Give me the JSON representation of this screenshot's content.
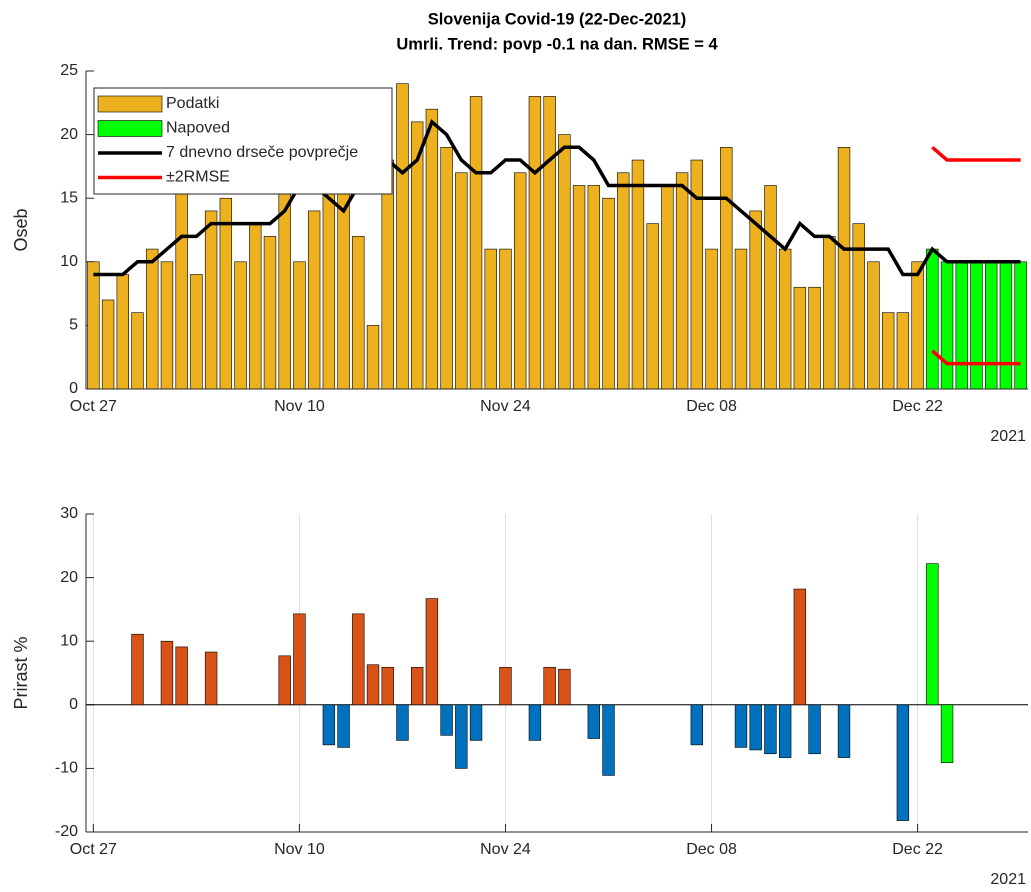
{
  "chart_data": [
    {
      "type": "bar",
      "title": "Slovenija Covid-19 (22-Dec-2021)",
      "subtitle": "Umrli. Trend: povp -0.1 na dan. RMSE = 4",
      "ylabel": "Oseb",
      "year_label": "2021",
      "x": [
        "2021-10-27",
        "2021-10-28",
        "2021-10-29",
        "2021-10-30",
        "2021-10-31",
        "2021-11-01",
        "2021-11-02",
        "2021-11-03",
        "2021-11-04",
        "2021-11-05",
        "2021-11-06",
        "2021-11-07",
        "2021-11-08",
        "2021-11-09",
        "2021-11-10",
        "2021-11-11",
        "2021-11-12",
        "2021-11-13",
        "2021-11-14",
        "2021-11-15",
        "2021-11-16",
        "2021-11-17",
        "2021-11-18",
        "2021-11-19",
        "2021-11-20",
        "2021-11-21",
        "2021-11-22",
        "2021-11-23",
        "2021-11-24",
        "2021-11-25",
        "2021-11-26",
        "2021-11-27",
        "2021-11-28",
        "2021-11-29",
        "2021-11-30",
        "2021-12-01",
        "2021-12-02",
        "2021-12-03",
        "2021-12-04",
        "2021-12-05",
        "2021-12-06",
        "2021-12-07",
        "2021-12-08",
        "2021-12-09",
        "2021-12-10",
        "2021-12-11",
        "2021-12-12",
        "2021-12-13",
        "2021-12-14",
        "2021-12-15",
        "2021-12-16",
        "2021-12-17",
        "2021-12-18",
        "2021-12-19",
        "2021-12-20",
        "2021-12-21",
        "2021-12-22",
        "2021-12-23",
        "2021-12-24",
        "2021-12-25",
        "2021-12-26",
        "2021-12-27",
        "2021-12-28",
        "2021-12-29"
      ],
      "series": [
        {
          "name": "Podatki",
          "type": "bar",
          "color": "#edb120",
          "values": [
            10,
            7,
            9,
            6,
            11,
            10,
            16,
            9,
            14,
            15,
            10,
            13,
            12,
            16,
            10,
            14,
            17,
            16,
            12,
            5,
            18,
            24,
            21,
            22,
            19,
            17,
            23,
            11,
            11,
            17,
            23,
            23,
            20,
            16,
            16,
            15,
            17,
            18,
            13,
            16,
            17,
            18,
            11,
            19,
            11,
            14,
            16,
            11,
            8,
            8,
            12,
            19,
            13,
            10,
            6,
            6,
            10,
            null,
            null,
            null,
            null,
            null,
            null,
            null
          ]
        },
        {
          "name": "Napoved",
          "type": "bar",
          "color": "#00ff00",
          "values": [
            null,
            null,
            null,
            null,
            null,
            null,
            null,
            null,
            null,
            null,
            null,
            null,
            null,
            null,
            null,
            null,
            null,
            null,
            null,
            null,
            null,
            null,
            null,
            null,
            null,
            null,
            null,
            null,
            null,
            null,
            null,
            null,
            null,
            null,
            null,
            null,
            null,
            null,
            null,
            null,
            null,
            null,
            null,
            null,
            null,
            null,
            null,
            null,
            null,
            null,
            null,
            null,
            null,
            null,
            null,
            null,
            null,
            11,
            10,
            10,
            10,
            10,
            10,
            10
          ]
        },
        {
          "name": "7 dnevno drseče povprečje",
          "type": "line",
          "color": "#000000",
          "values": [
            9,
            9,
            9,
            10,
            10,
            11,
            12,
            12,
            13,
            13,
            13,
            13,
            13,
            14,
            16,
            16,
            15,
            14,
            16,
            17,
            18,
            17,
            18,
            21,
            20,
            18,
            17,
            17,
            18,
            18,
            17,
            18,
            19,
            19,
            18,
            16,
            16,
            16,
            16,
            16,
            16,
            15,
            15,
            15,
            14,
            13,
            12,
            11,
            13,
            12,
            12,
            11,
            11,
            11,
            11,
            9,
            9,
            11,
            10,
            10,
            10,
            10,
            10,
            10
          ]
        },
        {
          "name": "±2RMSE",
          "type": "band",
          "color": "#ff0000",
          "upper": [
            null,
            null,
            null,
            null,
            null,
            null,
            null,
            null,
            null,
            null,
            null,
            null,
            null,
            null,
            null,
            null,
            null,
            null,
            null,
            null,
            null,
            null,
            null,
            null,
            null,
            null,
            null,
            null,
            null,
            null,
            null,
            null,
            null,
            null,
            null,
            null,
            null,
            null,
            null,
            null,
            null,
            null,
            null,
            null,
            null,
            null,
            null,
            null,
            null,
            null,
            null,
            null,
            null,
            null,
            null,
            null,
            null,
            19,
            18,
            18,
            18,
            18,
            18,
            18
          ],
          "lower": [
            null,
            null,
            null,
            null,
            null,
            null,
            null,
            null,
            null,
            null,
            null,
            null,
            null,
            null,
            null,
            null,
            null,
            null,
            null,
            null,
            null,
            null,
            null,
            null,
            null,
            null,
            null,
            null,
            null,
            null,
            null,
            null,
            null,
            null,
            null,
            null,
            null,
            null,
            null,
            null,
            null,
            null,
            null,
            null,
            null,
            null,
            null,
            null,
            null,
            null,
            null,
            null,
            null,
            null,
            null,
            null,
            null,
            3,
            2,
            2,
            2,
            2,
            2,
            2
          ]
        }
      ],
      "xlim": [
        "2021-10-26T12:00:00Z",
        "2021-12-29T12:00:00Z"
      ],
      "xticks": [
        {
          "value": "2021-10-27",
          "label": "Oct 27"
        },
        {
          "value": "2021-11-10",
          "label": "Nov 10"
        },
        {
          "value": "2021-11-24",
          "label": "Nov 24"
        },
        {
          "value": "2021-12-08",
          "label": "Dec 08"
        },
        {
          "value": "2021-12-22",
          "label": "Dec 22"
        }
      ],
      "ylim": [
        0,
        25
      ],
      "yticks": [
        0,
        5,
        10,
        15,
        20,
        25
      ],
      "legend": "northwest",
      "xgrid": false
    },
    {
      "type": "bar",
      "ylabel": "Prirast %",
      "year_label": "2021",
      "x": [
        "2021-10-27",
        "2021-10-28",
        "2021-10-29",
        "2021-10-30",
        "2021-10-31",
        "2021-11-01",
        "2021-11-02",
        "2021-11-03",
        "2021-11-04",
        "2021-11-05",
        "2021-11-06",
        "2021-11-07",
        "2021-11-08",
        "2021-11-09",
        "2021-11-10",
        "2021-11-11",
        "2021-11-12",
        "2021-11-13",
        "2021-11-14",
        "2021-11-15",
        "2021-11-16",
        "2021-11-17",
        "2021-11-18",
        "2021-11-19",
        "2021-11-20",
        "2021-11-21",
        "2021-11-22",
        "2021-11-23",
        "2021-11-24",
        "2021-11-25",
        "2021-11-26",
        "2021-11-27",
        "2021-11-28",
        "2021-11-29",
        "2021-11-30",
        "2021-12-01",
        "2021-12-02",
        "2021-12-03",
        "2021-12-04",
        "2021-12-05",
        "2021-12-06",
        "2021-12-07",
        "2021-12-08",
        "2021-12-09",
        "2021-12-10",
        "2021-12-11",
        "2021-12-12",
        "2021-12-13",
        "2021-12-14",
        "2021-12-15",
        "2021-12-16",
        "2021-12-17",
        "2021-12-18",
        "2021-12-19",
        "2021-12-20",
        "2021-12-21",
        "2021-12-22",
        "2021-12-23",
        "2021-12-24",
        "2021-12-25",
        "2021-12-26",
        "2021-12-27",
        "2021-12-28",
        "2021-12-29"
      ],
      "series": [
        {
          "type": "bar",
          "color_positive": "#d95319",
          "color_negative": "#0072bd",
          "values": [
            null,
            0,
            0,
            11.1,
            0,
            10,
            9.1,
            0,
            8.3,
            0,
            0,
            0,
            0,
            7.7,
            14.3,
            0,
            -6.3,
            -6.7,
            14.3,
            6.3,
            5.9,
            -5.6,
            5.9,
            16.7,
            -4.8,
            -10,
            -5.6,
            0,
            5.9,
            0,
            -5.6,
            5.9,
            5.6,
            0,
            -5.3,
            -11.1,
            0,
            0,
            0,
            0,
            0,
            -6.3,
            0,
            0,
            -6.7,
            -7.1,
            -7.7,
            -8.3,
            18.2,
            -7.7,
            0,
            -8.3,
            0,
            0,
            0,
            -18.2,
            0,
            null,
            null,
            null,
            null,
            null,
            null,
            null
          ]
        },
        {
          "type": "bar",
          "color": "#00ff00",
          "values": [
            null,
            null,
            null,
            null,
            null,
            null,
            null,
            null,
            null,
            null,
            null,
            null,
            null,
            null,
            null,
            null,
            null,
            null,
            null,
            null,
            null,
            null,
            null,
            null,
            null,
            null,
            null,
            null,
            null,
            null,
            null,
            null,
            null,
            null,
            null,
            null,
            null,
            null,
            null,
            null,
            null,
            null,
            null,
            null,
            null,
            null,
            null,
            null,
            null,
            null,
            null,
            null,
            null,
            null,
            null,
            null,
            null,
            22.2,
            -9.1,
            0,
            0,
            0,
            0,
            0
          ]
        }
      ],
      "xlim": [
        "2021-10-26T12:00:00Z",
        "2021-12-29T12:00:00Z"
      ],
      "xticks": [
        {
          "value": "2021-10-27",
          "label": "Oct 27"
        },
        {
          "value": "2021-11-10",
          "label": "Nov 10"
        },
        {
          "value": "2021-11-24",
          "label": "Nov 24"
        },
        {
          "value": "2021-12-08",
          "label": "Dec 08"
        },
        {
          "value": "2021-12-22",
          "label": "Dec 22"
        }
      ],
      "ylim": [
        -20,
        30
      ],
      "yticks": [
        -20,
        -10,
        0,
        10,
        20,
        30
      ],
      "xgrid": true
    }
  ]
}
